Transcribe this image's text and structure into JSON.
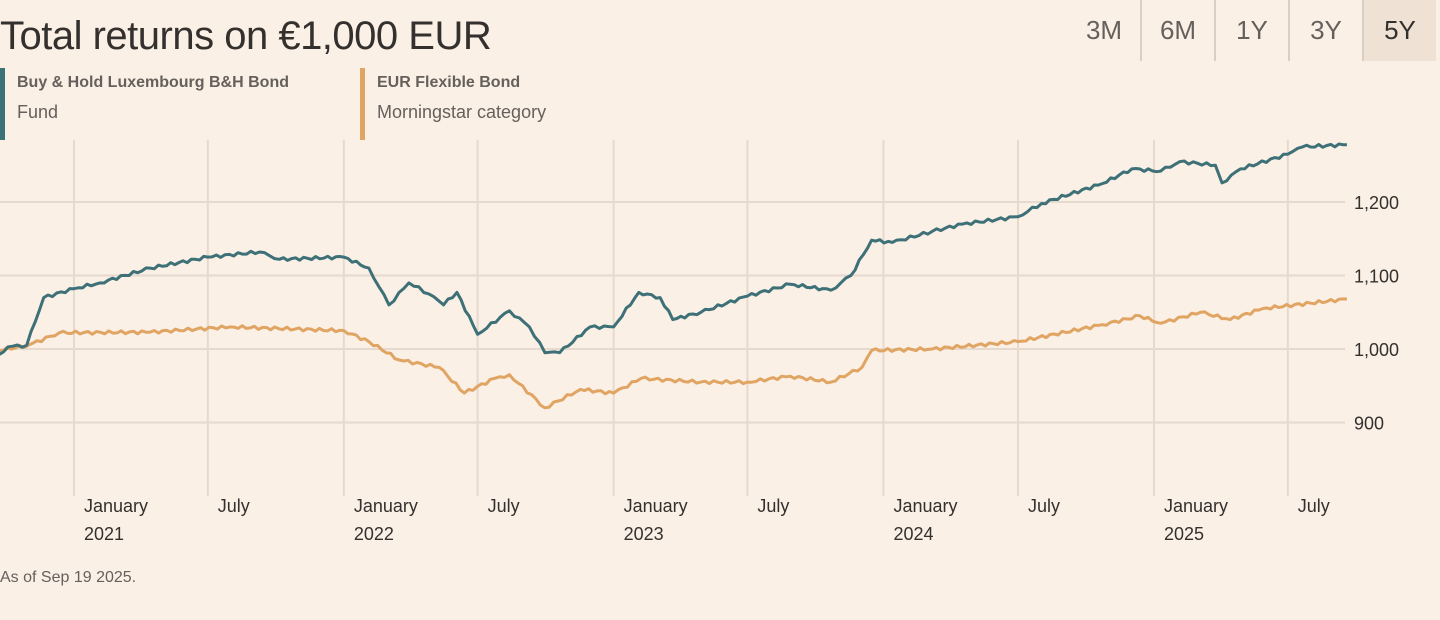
{
  "title": "Total returns on €1,000 EUR",
  "ranges": [
    {
      "label": "3M",
      "active": false
    },
    {
      "label": "6M",
      "active": false
    },
    {
      "label": "1Y",
      "active": false
    },
    {
      "label": "3Y",
      "active": false
    },
    {
      "label": "5Y",
      "active": true
    }
  ],
  "legend": [
    {
      "name": "Buy & Hold Luxembourg B&H Bond",
      "sub": "Fund",
      "color": "#3d7077"
    },
    {
      "name": "EUR Flexible Bond",
      "sub": "Morningstar category",
      "color": "#e0a463"
    }
  ],
  "footnote": "As of Sep 19 2025.",
  "chart_data": {
    "type": "line",
    "title": "Total returns on €1,000 EUR",
    "xlim": [
      "2020-09-21",
      "2025-09-19"
    ],
    "ylim": [
      800,
      1285
    ],
    "grid": true,
    "legend_position": "top-left",
    "y_ticks": [
      "900",
      "1,000",
      "1,100",
      "1,200"
    ],
    "y_tick_values": [
      900,
      1000,
      1100,
      1200
    ],
    "x_ticks": [
      {
        "date": "2021-01-01",
        "label": "January",
        "year": "2021"
      },
      {
        "date": "2021-07-01",
        "label": "July",
        "year": ""
      },
      {
        "date": "2022-01-01",
        "label": "January",
        "year": "2022"
      },
      {
        "date": "2022-07-01",
        "label": "July",
        "year": ""
      },
      {
        "date": "2023-01-01",
        "label": "January",
        "year": "2023"
      },
      {
        "date": "2023-07-01",
        "label": "July",
        "year": ""
      },
      {
        "date": "2024-01-01",
        "label": "January",
        "year": "2024"
      },
      {
        "date": "2024-07-01",
        "label": "July",
        "year": ""
      },
      {
        "date": "2025-01-01",
        "label": "January",
        "year": "2025"
      },
      {
        "date": "2025-07-01",
        "label": "July",
        "year": ""
      }
    ],
    "series": [
      {
        "name": "Buy & Hold Luxembourg B&H Bond",
        "color": "#3d7077",
        "points": [
          [
            "2020-09-21",
            992
          ],
          [
            "2020-10-04",
            1003
          ],
          [
            "2020-10-29",
            1005
          ],
          [
            "2020-11-21",
            1070
          ],
          [
            "2021-01-01",
            1082
          ],
          [
            "2021-02-05",
            1090
          ],
          [
            "2021-04-14",
            1110
          ],
          [
            "2021-07-01",
            1125
          ],
          [
            "2021-09-09",
            1132
          ],
          [
            "2021-10-06",
            1122
          ],
          [
            "2022-01-01",
            1125
          ],
          [
            "2022-02-04",
            1110
          ],
          [
            "2022-03-03",
            1060
          ],
          [
            "2022-03-30",
            1090
          ],
          [
            "2022-04-26",
            1075
          ],
          [
            "2022-05-16",
            1060
          ],
          [
            "2022-06-03",
            1077
          ],
          [
            "2022-07-01",
            1020
          ],
          [
            "2022-08-13",
            1052
          ],
          [
            "2022-09-09",
            1030
          ],
          [
            "2022-09-30",
            995
          ],
          [
            "2022-10-20",
            995
          ],
          [
            "2022-11-30",
            1030
          ],
          [
            "2023-01-01",
            1030
          ],
          [
            "2023-02-04",
            1077
          ],
          [
            "2023-03-05",
            1070
          ],
          [
            "2023-03-22",
            1040
          ],
          [
            "2023-04-29",
            1050
          ],
          [
            "2023-07-01",
            1072
          ],
          [
            "2023-08-28",
            1088
          ],
          [
            "2023-10-22",
            1080
          ],
          [
            "2023-11-18",
            1100
          ],
          [
            "2023-12-16",
            1148
          ],
          [
            "2024-01-13",
            1145
          ],
          [
            "2024-03-07",
            1160
          ],
          [
            "2024-04-17",
            1170
          ],
          [
            "2024-07-01",
            1180
          ],
          [
            "2024-08-02",
            1198
          ],
          [
            "2024-10-23",
            1225
          ],
          [
            "2024-12-02",
            1245
          ],
          [
            "2025-01-10",
            1242
          ],
          [
            "2025-02-05",
            1255
          ],
          [
            "2025-03-25",
            1250
          ],
          [
            "2025-04-03",
            1226
          ],
          [
            "2025-04-28",
            1245
          ],
          [
            "2025-07-01",
            1265
          ],
          [
            "2025-07-21",
            1275
          ],
          [
            "2025-09-19",
            1278
          ]
        ]
      },
      {
        "name": "EUR Flexible Bond",
        "color": "#e0a463",
        "points": [
          [
            "2020-09-21",
            998
          ],
          [
            "2020-10-31",
            1005
          ],
          [
            "2020-12-12",
            1022
          ],
          [
            "2021-04-14",
            1023
          ],
          [
            "2021-07-31",
            1030
          ],
          [
            "2022-01-01",
            1025
          ],
          [
            "2022-02-04",
            1010
          ],
          [
            "2022-03-17",
            985
          ],
          [
            "2022-05-10",
            975
          ],
          [
            "2022-06-13",
            940
          ],
          [
            "2022-07-24",
            960
          ],
          [
            "2022-08-13",
            965
          ],
          [
            "2022-09-30",
            920
          ],
          [
            "2022-11-17",
            945
          ],
          [
            "2023-01-01",
            940
          ],
          [
            "2023-02-07",
            960
          ],
          [
            "2023-04-29",
            955
          ],
          [
            "2023-07-01",
            955
          ],
          [
            "2023-08-28",
            963
          ],
          [
            "2023-10-22",
            955
          ],
          [
            "2023-12-03",
            975
          ],
          [
            "2023-12-16",
            998
          ],
          [
            "2024-03-07",
            1000
          ],
          [
            "2024-07-01",
            1010
          ],
          [
            "2024-10-23",
            1033
          ],
          [
            "2024-12-13",
            1045
          ],
          [
            "2025-01-10",
            1035
          ],
          [
            "2025-03-05",
            1050
          ],
          [
            "2025-04-14",
            1040
          ],
          [
            "2025-05-28",
            1055
          ],
          [
            "2025-09-19",
            1068
          ]
        ]
      }
    ]
  }
}
